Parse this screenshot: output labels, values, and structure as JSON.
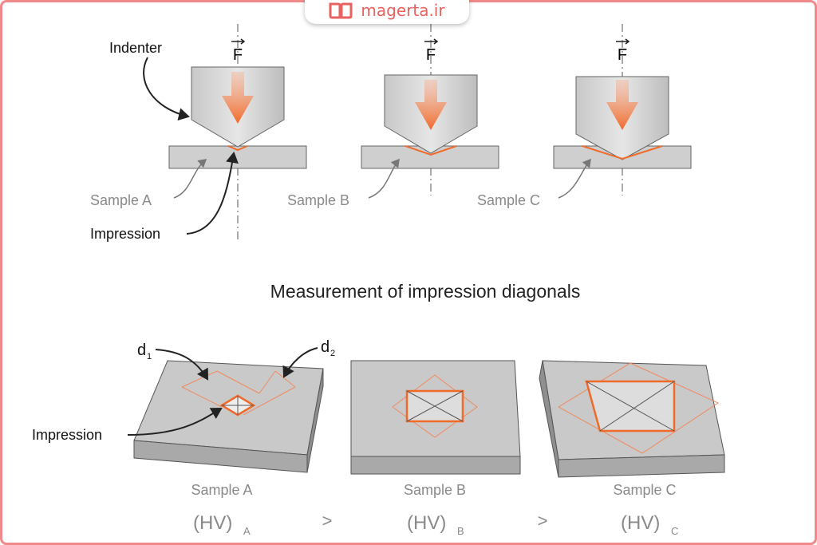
{
  "watermark": {
    "text": "magerta.ir",
    "icon": "open-book-icon",
    "color": "#e8625f"
  },
  "top": {
    "force_label": "F",
    "indenter_label": "Indenter",
    "impression_label": "Impression",
    "samples": [
      "Sample A",
      "Sample B",
      "Sample C"
    ]
  },
  "title": "Measurement of impression diagonals",
  "bottom": {
    "d1_label": "d",
    "d1_sub": "1",
    "d2_label": "d",
    "d2_sub": "2",
    "impression_label": "Impression",
    "samples": [
      "Sample A",
      "Sample B",
      "Sample C"
    ],
    "hardness": [
      {
        "base": "(HV)",
        "sub": "A"
      },
      {
        "base": "(HV)",
        "sub": "B"
      },
      {
        "base": "(HV)",
        "sub": "C"
      }
    ],
    "comparators": [
      ">",
      ">"
    ]
  },
  "colors": {
    "accent": "#f06a2a",
    "frame": "#f08a8a",
    "gray_text": "#8a8a8a"
  }
}
